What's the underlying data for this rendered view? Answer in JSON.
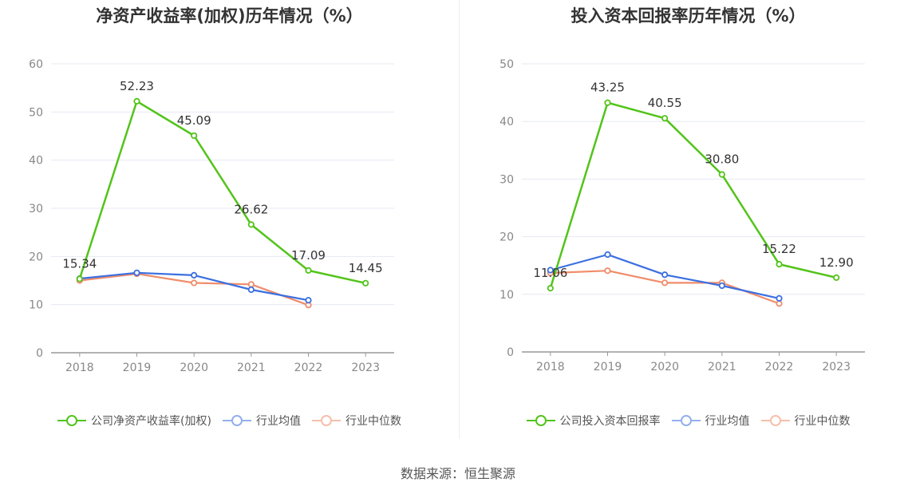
{
  "source": "数据来源：恒生聚源",
  "colors": {
    "company": "#52c41a",
    "avg": "#3b6fe0",
    "median": "#f08c6a",
    "grid": "#e6e9f2",
    "axis": "#999999"
  },
  "chart_data": [
    {
      "type": "line",
      "title": "净资产收益率(加权)历年情况（%）",
      "categories": [
        "2018",
        "2019",
        "2020",
        "2021",
        "2022",
        "2023"
      ],
      "ylim": [
        0,
        60
      ],
      "yticks": [
        0,
        10,
        20,
        30,
        40,
        50,
        60
      ],
      "grid": true,
      "legend_position": "bottom",
      "series": [
        {
          "name": "公司净资产收益率(加权)",
          "key": "company",
          "values": [
            15.34,
            52.23,
            45.09,
            26.62,
            17.09,
            14.45
          ],
          "labels": [
            "15.34",
            "52.23",
            "45.09",
            "26.62",
            "17.09",
            "14.45"
          ]
        },
        {
          "name": "行业均值",
          "key": "avg",
          "values": [
            15.4,
            16.6,
            16.1,
            13.1,
            10.9,
            null
          ]
        },
        {
          "name": "行业中位数",
          "key": "median",
          "values": [
            15.0,
            16.4,
            14.5,
            14.2,
            9.9,
            null
          ]
        }
      ]
    },
    {
      "type": "line",
      "title": "投入资本回报率历年情况（%）",
      "categories": [
        "2018",
        "2019",
        "2020",
        "2021",
        "2022",
        "2023"
      ],
      "ylim": [
        0,
        50
      ],
      "yticks": [
        0,
        10,
        20,
        30,
        40,
        50
      ],
      "grid": true,
      "legend_position": "bottom",
      "series": [
        {
          "name": "公司投入资本回报率",
          "key": "company",
          "values": [
            11.06,
            43.25,
            40.55,
            30.8,
            15.22,
            12.9
          ],
          "labels": [
            "11.06",
            "43.25",
            "40.55",
            "30.80",
            "15.22",
            "12.90"
          ]
        },
        {
          "name": "行业均值",
          "key": "avg",
          "values": [
            14.2,
            16.9,
            13.4,
            11.5,
            9.3,
            null
          ]
        },
        {
          "name": "行业中位数",
          "key": "median",
          "values": [
            13.7,
            14.1,
            12.0,
            12.0,
            8.4,
            null
          ]
        }
      ]
    }
  ]
}
